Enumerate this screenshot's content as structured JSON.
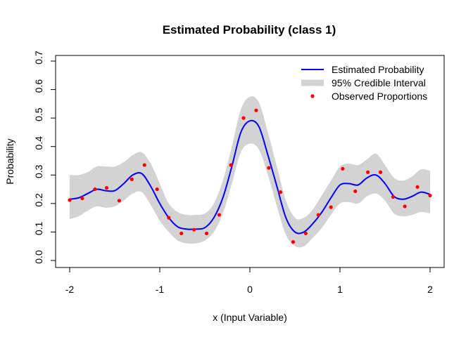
{
  "chart_data": {
    "type": "line",
    "title": "Estimated Probability (class 1)",
    "xlabel": "x (Input Variable)",
    "ylabel": "Probability",
    "xlim": [
      -2.0,
      2.0
    ],
    "ylim": [
      0.0,
      0.7
    ],
    "xticks": [
      -2,
      -1,
      0,
      1,
      2
    ],
    "xtick_labels": [
      "-2",
      "-1",
      "0",
      "1",
      "2"
    ],
    "yticks": [
      0.0,
      0.1,
      0.2,
      0.3,
      0.4,
      0.5,
      0.6,
      0.7
    ],
    "ytick_labels": [
      "0.0",
      "0.1",
      "0.2",
      "0.3",
      "0.4",
      "0.5",
      "0.6",
      "0.7"
    ],
    "grid": false,
    "legend_position": "top-right",
    "series": [
      {
        "name": "Estimated Probability",
        "kind": "line",
        "color": "#0000ff",
        "x": [
          -2.0,
          -1.9,
          -1.8,
          -1.7,
          -1.6,
          -1.5,
          -1.4,
          -1.3,
          -1.2,
          -1.1,
          -1.0,
          -0.9,
          -0.8,
          -0.7,
          -0.6,
          -0.5,
          -0.4,
          -0.3,
          -0.2,
          -0.1,
          0.0,
          0.1,
          0.2,
          0.3,
          0.4,
          0.5,
          0.6,
          0.7,
          0.8,
          0.9,
          1.0,
          1.1,
          1.2,
          1.3,
          1.4,
          1.5,
          1.6,
          1.7,
          1.8,
          1.9,
          2.0
        ],
        "y": [
          0.215,
          0.22,
          0.235,
          0.25,
          0.245,
          0.245,
          0.27,
          0.3,
          0.305,
          0.26,
          0.2,
          0.15,
          0.118,
          0.11,
          0.11,
          0.115,
          0.15,
          0.22,
          0.33,
          0.45,
          0.49,
          0.47,
          0.37,
          0.26,
          0.15,
          0.1,
          0.1,
          0.13,
          0.17,
          0.22,
          0.265,
          0.27,
          0.265,
          0.29,
          0.3,
          0.27,
          0.225,
          0.215,
          0.225,
          0.24,
          0.232
        ]
      },
      {
        "name": "95% Credible Interval",
        "kind": "band",
        "color": "#d3d3d3",
        "x": [
          -2.0,
          -1.9,
          -1.8,
          -1.7,
          -1.6,
          -1.5,
          -1.4,
          -1.3,
          -1.2,
          -1.1,
          -1.0,
          -0.9,
          -0.8,
          -0.7,
          -0.6,
          -0.5,
          -0.4,
          -0.3,
          -0.2,
          -0.1,
          0.0,
          0.1,
          0.2,
          0.3,
          0.4,
          0.5,
          0.6,
          0.7,
          0.8,
          0.9,
          1.0,
          1.1,
          1.2,
          1.3,
          1.4,
          1.5,
          1.6,
          1.7,
          1.8,
          1.9,
          2.0
        ],
        "lower": [
          0.145,
          0.155,
          0.175,
          0.19,
          0.185,
          0.19,
          0.21,
          0.235,
          0.24,
          0.195,
          0.14,
          0.1,
          0.07,
          0.06,
          0.06,
          0.07,
          0.1,
          0.165,
          0.27,
          0.38,
          0.41,
          0.39,
          0.3,
          0.19,
          0.09,
          0.05,
          0.05,
          0.08,
          0.115,
          0.16,
          0.2,
          0.205,
          0.2,
          0.225,
          0.235,
          0.21,
          0.165,
          0.155,
          0.16,
          0.17,
          0.165
        ],
        "upper": [
          0.3,
          0.3,
          0.31,
          0.33,
          0.33,
          0.33,
          0.345,
          0.37,
          0.38,
          0.34,
          0.27,
          0.2,
          0.17,
          0.16,
          0.16,
          0.165,
          0.2,
          0.28,
          0.4,
          0.53,
          0.575,
          0.555,
          0.45,
          0.33,
          0.21,
          0.15,
          0.15,
          0.18,
          0.23,
          0.28,
          0.33,
          0.34,
          0.335,
          0.355,
          0.375,
          0.335,
          0.29,
          0.28,
          0.295,
          0.32,
          0.315
        ]
      },
      {
        "name": "Observed Proportions",
        "kind": "points",
        "color": "#ff0000",
        "x": [
          -2.0,
          -1.86,
          -1.72,
          -1.59,
          -1.45,
          -1.31,
          -1.17,
          -1.03,
          -0.9,
          -0.76,
          -0.62,
          -0.48,
          -0.34,
          -0.21,
          -0.07,
          0.07,
          0.21,
          0.34,
          0.48,
          0.62,
          0.76,
          0.9,
          1.03,
          1.17,
          1.31,
          1.45,
          1.59,
          1.72,
          1.86,
          2.0
        ],
        "y": [
          0.212,
          0.218,
          0.25,
          0.255,
          0.21,
          0.285,
          0.335,
          0.25,
          0.15,
          0.095,
          0.108,
          0.095,
          0.16,
          0.335,
          0.5,
          0.527,
          0.325,
          0.24,
          0.065,
          0.095,
          0.16,
          0.187,
          0.322,
          0.243,
          0.31,
          0.31,
          0.223,
          0.19,
          0.258,
          0.228
        ]
      }
    ]
  }
}
